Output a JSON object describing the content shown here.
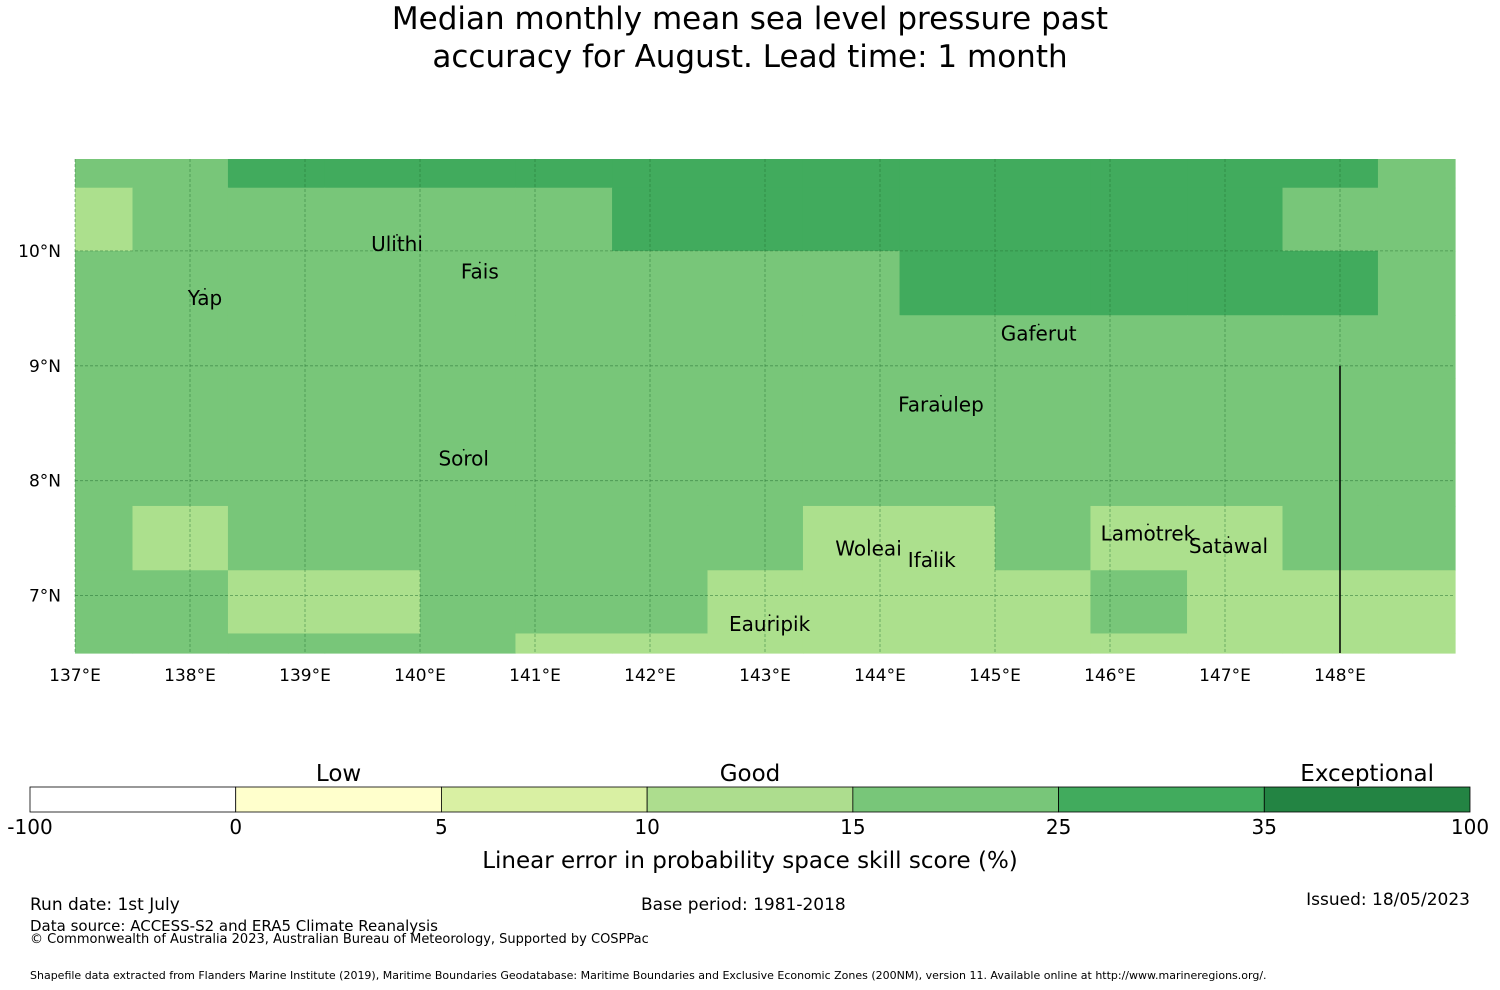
{
  "title_lines": [
    "Median monthly mean sea level pressure past",
    "accuracy for August. Lead time: 1 month"
  ],
  "map": {
    "lon_range": [
      137.0,
      149.0
    ],
    "lat_range": [
      6.5,
      10.8
    ],
    "grid": true,
    "lon_ticks": [
      {
        "value": 137,
        "label": "137°E"
      },
      {
        "value": 138,
        "label": "138°E"
      },
      {
        "value": 139,
        "label": "139°E"
      },
      {
        "value": 140,
        "label": "140°E"
      },
      {
        "value": 141,
        "label": "141°E"
      },
      {
        "value": 142,
        "label": "142°E"
      },
      {
        "value": 143,
        "label": "143°E"
      },
      {
        "value": 144,
        "label": "144°E"
      },
      {
        "value": 145,
        "label": "145°E"
      },
      {
        "value": 146,
        "label": "146°E"
      },
      {
        "value": 147,
        "label": "147°E"
      },
      {
        "value": 148,
        "label": "148°E"
      }
    ],
    "lat_ticks": [
      {
        "value": 10,
        "label": "10°N"
      },
      {
        "value": 9,
        "label": "9°N"
      },
      {
        "value": 8,
        "label": "8°N"
      },
      {
        "value": 7,
        "label": "7°N"
      }
    ],
    "cell_colors": {
      "a": "#ace08d",
      "b": "#78c679",
      "c": "#41ab5d"
    },
    "lon_edges": [
      137.0,
      137.5,
      138.33,
      139.17,
      140.0,
      140.83,
      141.67,
      142.5,
      143.33,
      144.17,
      145.0,
      145.83,
      146.67,
      147.5,
      148.33,
      149.0
    ],
    "lat_edges": [
      10.8,
      10.55,
      10.0,
      9.44,
      8.89,
      8.33,
      7.78,
      7.22,
      6.67,
      6.5
    ],
    "grid_rows": [
      "bbccccccccccccbb",
      "abbbbbcccccccbbb",
      "bbbbbbbbbcccccbb",
      "bbbbbbbbbbbbbbbb",
      "bbbbbbbbbbbbbbbb",
      "bbbbbbbbbbbbbbbb",
      "babbbbbbaabaabbb",
      "bbaabbbaaaabaaaa",
      "bbbbbaaaaaaaaaaa"
    ],
    "eez_boundary_line": {
      "lon": 148.0,
      "lat_from": 6.5,
      "lat_to": 9.0
    },
    "places": [
      {
        "name": "Ulithi",
        "lon": 139.8,
        "lat": 10.0
      },
      {
        "name": "Fais",
        "lon": 140.52,
        "lat": 9.76
      },
      {
        "name": "Yap",
        "lon": 138.13,
        "lat": 9.53
      },
      {
        "name": "Gaferut",
        "lon": 145.38,
        "lat": 9.22
      },
      {
        "name": "Faraulep",
        "lon": 144.53,
        "lat": 8.6
      },
      {
        "name": "Sorol",
        "lon": 140.38,
        "lat": 8.13
      },
      {
        "name": "Woleai",
        "lon": 143.9,
        "lat": 7.35
      },
      {
        "name": "Ifalik",
        "lon": 144.45,
        "lat": 7.25
      },
      {
        "name": "Lamotrek",
        "lon": 146.33,
        "lat": 7.48
      },
      {
        "name": "Satawal",
        "lon": 147.03,
        "lat": 7.37
      },
      {
        "name": "Eauripik",
        "lon": 143.04,
        "lat": 6.69
      }
    ]
  },
  "legend": {
    "categories": [
      {
        "label": "Low",
        "value_center": 0
      },
      {
        "label": "Good",
        "value_center": 10
      },
      {
        "label": "Exceptional",
        "value_center": 35
      }
    ],
    "bins": [
      {
        "from": "-100",
        "to": "0",
        "color": "#ffffff"
      },
      {
        "from": "0",
        "to": "5",
        "color": "#ffffcc"
      },
      {
        "from": "5",
        "to": "10",
        "color": "#d9f0a3"
      },
      {
        "from": "10",
        "to": "15",
        "color": "#addd8e"
      },
      {
        "from": "15",
        "to": "25",
        "color": "#78c679"
      },
      {
        "from": "25",
        "to": "35",
        "color": "#41ab5d"
      },
      {
        "from": "35",
        "to": "100",
        "color": "#238443"
      }
    ],
    "tick_labels": [
      "-100",
      "0",
      "5",
      "10",
      "15",
      "25",
      "35",
      "100"
    ],
    "axis_label": "Linear error in probability space skill score (%)"
  },
  "footer": {
    "run_date": "Run date: 1st July",
    "base_period": "Base period: 1981-2018",
    "issued": "Issued: 18/05/2023",
    "data_source": "Data source: ACCESS-S2 and ERA5 Climate Reanalysis",
    "copyright": "© Commonwealth of Australia 2023, Australian Bureau of Meteorology, Supported by COSPPac",
    "shapefile": "Shapefile data extracted from Flanders Marine Institute (2019), Maritime Boundaries Geodatabase: Maritime Boundaries and Exclusive Economic Zones (200NM), version 11. Available online at http://www.marineregions.org/."
  }
}
